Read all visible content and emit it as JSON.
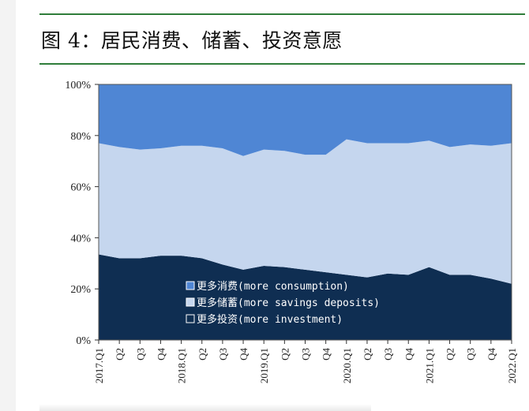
{
  "figure": {
    "title": "图 4：居民消费、储蓄、投资意愿"
  },
  "chart_data": {
    "type": "area",
    "stacked": true,
    "x": [
      "2017.Q1",
      "Q2",
      "Q3",
      "Q4",
      "2018.Q1",
      "Q2",
      "Q3",
      "Q4",
      "2019.Q1",
      "Q2",
      "Q3",
      "Q4",
      "2020.Q1",
      "Q2",
      "Q3",
      "Q4",
      "2021.Q1",
      "Q2",
      "Q3",
      "Q4",
      "2022.Q1"
    ],
    "ylim": [
      0,
      100
    ],
    "yticks": [
      "0%",
      "20%",
      "40%",
      "60%",
      "80%",
      "100%"
    ],
    "series": [
      {
        "name": "更多投资(more investment)",
        "color": "#0f2e52",
        "values": [
          33.5,
          32.0,
          32.0,
          33.0,
          33.0,
          32.0,
          29.5,
          27.5,
          29.0,
          28.5,
          27.5,
          26.5,
          25.5,
          24.5,
          26.0,
          25.5,
          28.5,
          25.5,
          25.5,
          24.0,
          22.0
        ]
      },
      {
        "name": "更多储蓄(more savings deposits)",
        "color": "#c5d6ee",
        "values": [
          43.5,
          43.5,
          42.5,
          42.0,
          43.0,
          44.0,
          45.5,
          44.5,
          45.5,
          45.5,
          45.0,
          46.0,
          53.0,
          52.5,
          51.0,
          51.5,
          49.5,
          50.0,
          51.0,
          52.0,
          55.0
        ]
      },
      {
        "name": "更多消费(more consumption)",
        "color": "#4f86d4",
        "values": [
          23.0,
          24.5,
          25.5,
          25.0,
          24.0,
          24.0,
          25.0,
          28.0,
          25.5,
          26.0,
          27.5,
          27.5,
          21.5,
          23.0,
          23.0,
          23.0,
          22.0,
          24.5,
          23.5,
          24.0,
          23.0
        ]
      }
    ],
    "legend": {
      "position": "lower-center",
      "entries": [
        "更多消费(more consumption)",
        "更多储蓄(more savings deposits)",
        "更多投资(more investment)"
      ]
    },
    "grid": false
  }
}
